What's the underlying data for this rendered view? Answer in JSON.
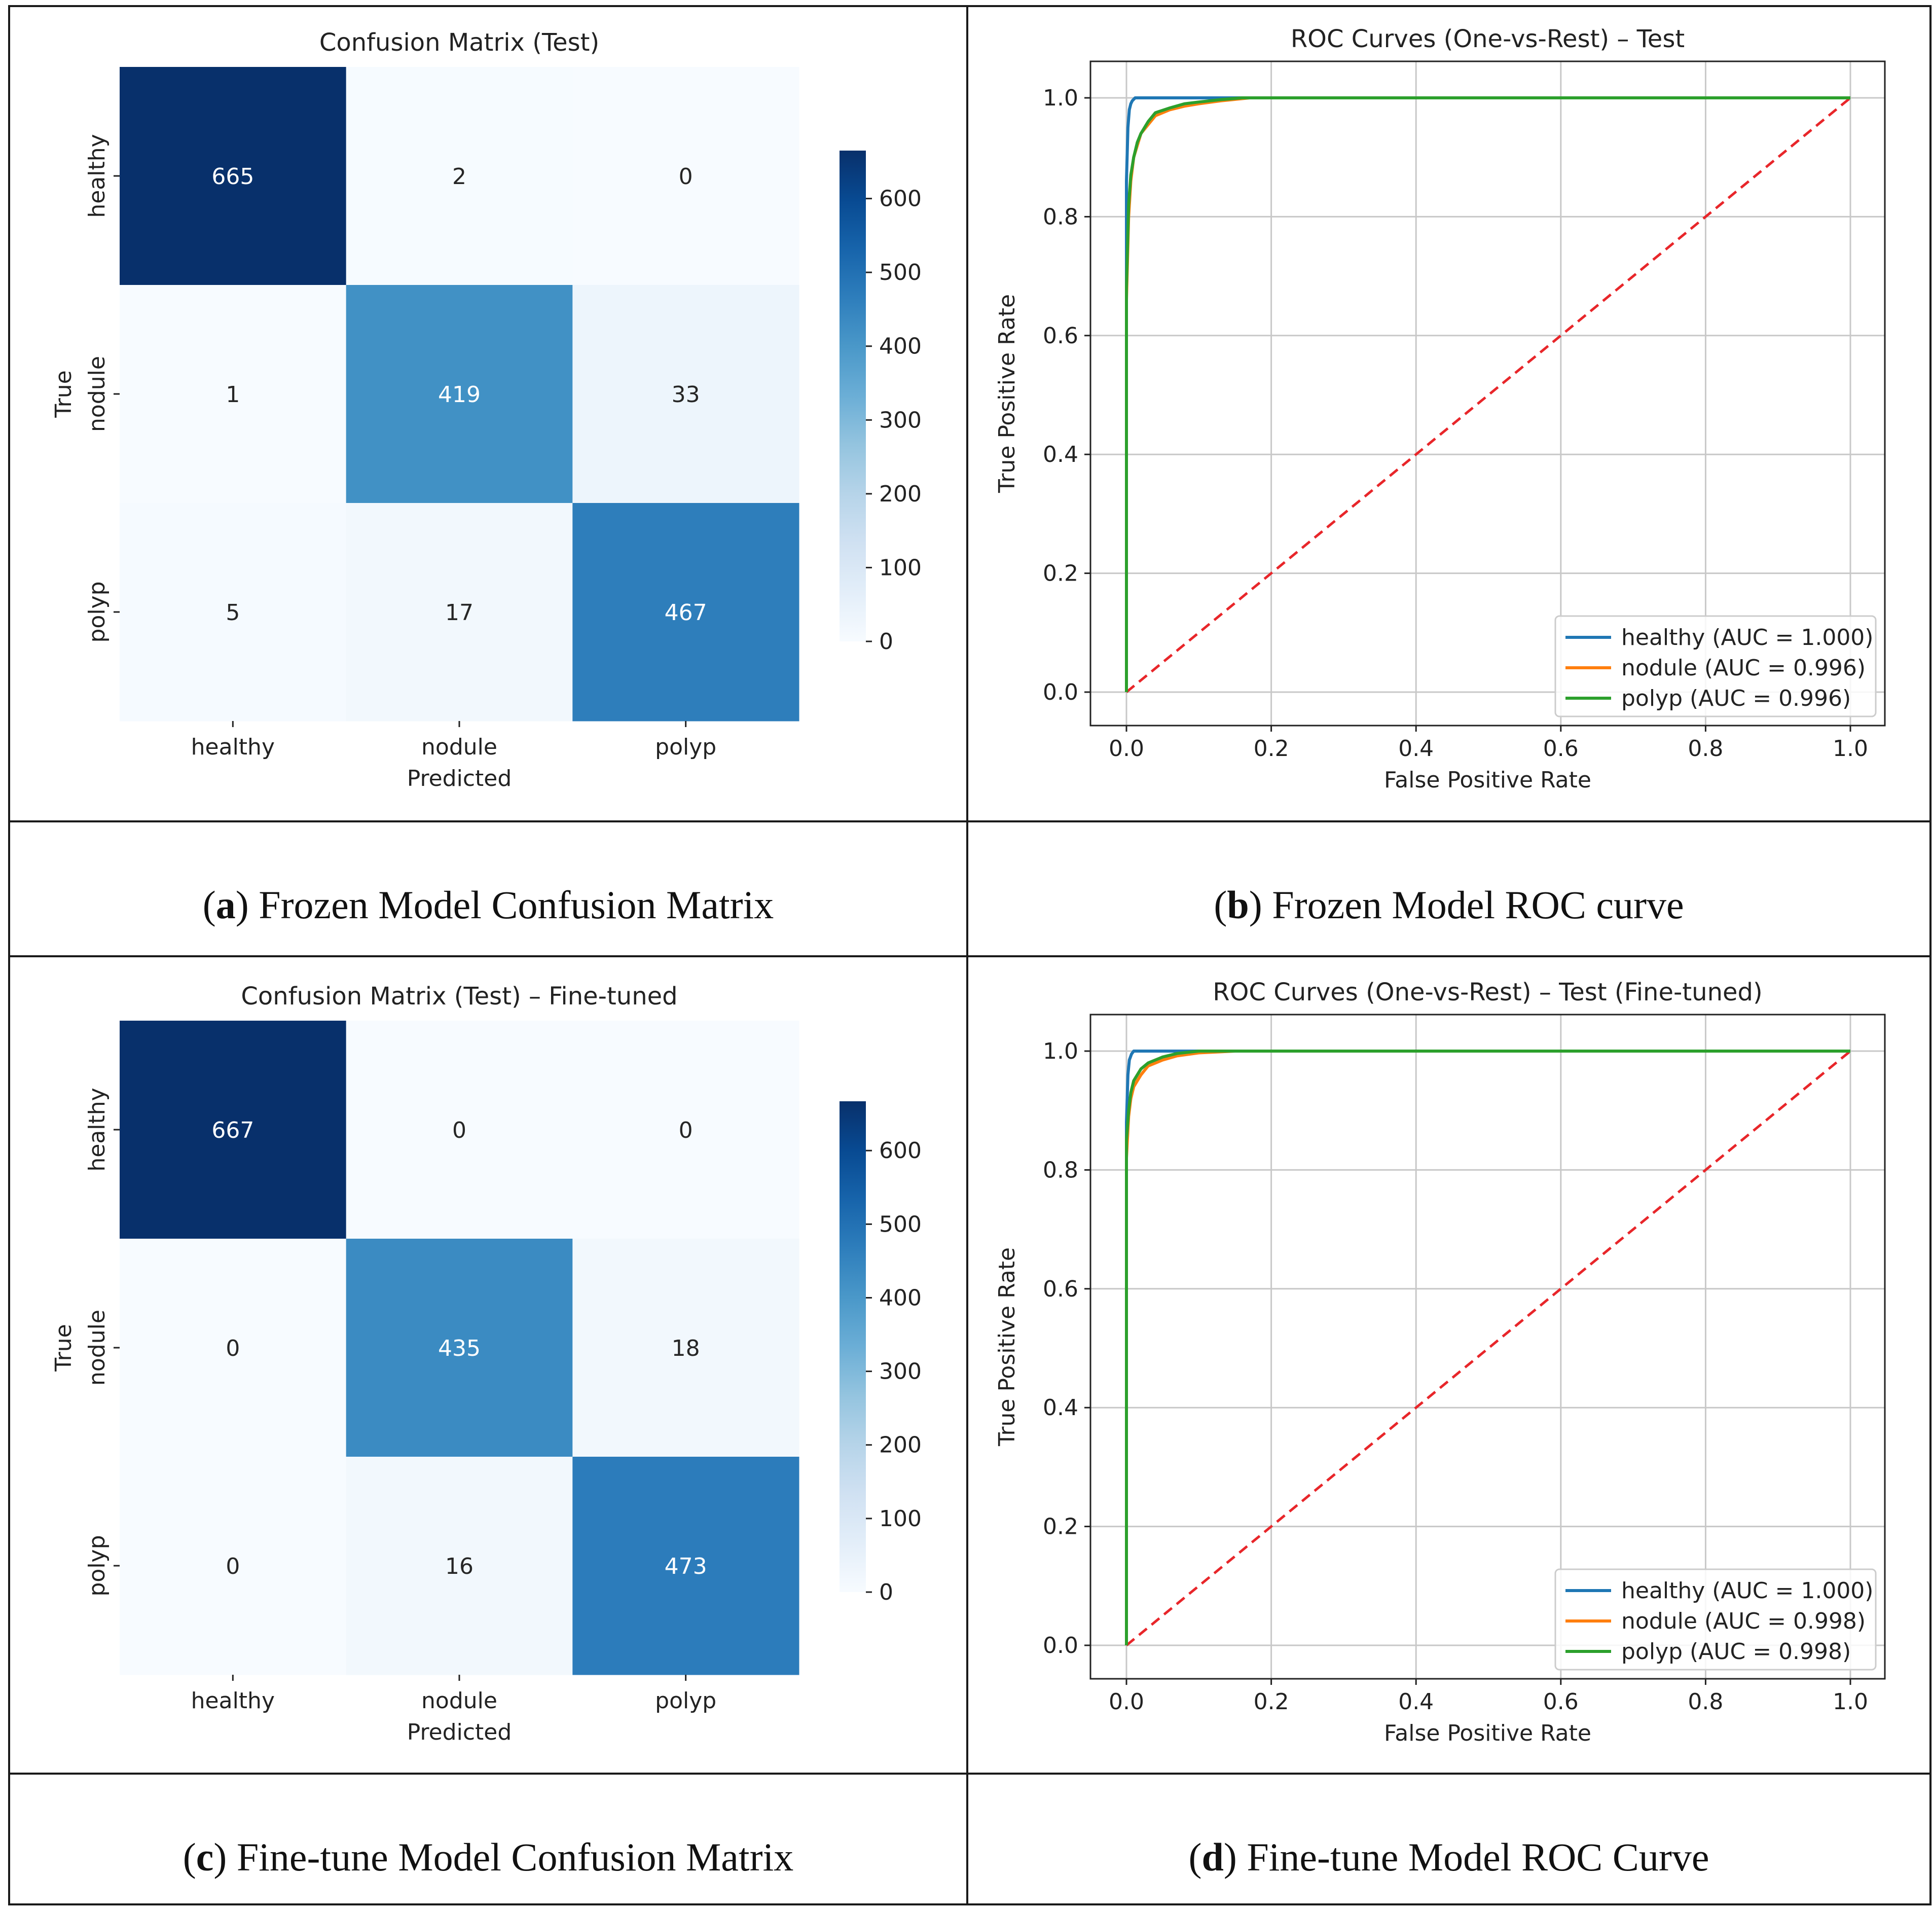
{
  "colors": {
    "frame": "#1a1a1a",
    "healthy": "#1f77b4",
    "nodule": "#ff7f0e",
    "polyp": "#2ca02c",
    "diagonal": "#e8262a",
    "gridline": "#c8c8c8"
  },
  "captions": {
    "a": {
      "letter": "a",
      "text": " Frozen Model Confusion Matrix"
    },
    "b": {
      "letter": "b",
      "text": " Frozen Model ROC curve"
    },
    "c": {
      "letter": "c",
      "text": " Fine-tune Model Confusion Matrix"
    },
    "d": {
      "letter": "d",
      "text": " Fine-tune Model ROC Curve"
    }
  },
  "chart_data": [
    {
      "id": "cm1",
      "type": "heatmap",
      "title": "Confusion Matrix (Test)",
      "xlabel": "Predicted",
      "ylabel": "True",
      "x_categories": [
        "healthy",
        "nodule",
        "polyp"
      ],
      "y_categories": [
        "healthy",
        "nodule",
        "polyp"
      ],
      "matrix": [
        [
          665,
          2,
          0
        ],
        [
          1,
          419,
          33
        ],
        [
          5,
          17,
          467
        ]
      ],
      "colorbar": {
        "min": 0,
        "max": 665,
        "ticks": [
          0,
          100,
          200,
          300,
          400,
          500,
          600
        ],
        "colormap": "Blues"
      }
    },
    {
      "id": "roc1",
      "type": "line",
      "title": "ROC Curves (One-vs-Rest) – Test",
      "xlabel": "False Positive Rate",
      "ylabel": "True Positive Rate",
      "xlim": [
        0,
        1
      ],
      "ylim": [
        0,
        1
      ],
      "xticks": [
        "0.0",
        "0.2",
        "0.4",
        "0.6",
        "0.8",
        "1.0"
      ],
      "yticks": [
        "0.0",
        "0.2",
        "0.4",
        "0.6",
        "0.8",
        "1.0"
      ],
      "grid": true,
      "legend": "bottom-right",
      "series": [
        {
          "name": "healthy (AUC = 1.000)",
          "color": "healthy",
          "x": [
            0,
            0,
            0.002,
            0.004,
            0.006,
            0.008,
            0.012,
            1.0
          ],
          "y": [
            0,
            0.86,
            0.95,
            0.98,
            0.99,
            0.995,
            1.0,
            1.0
          ]
        },
        {
          "name": "nodule (AUC = 0.996)",
          "color": "nodule",
          "x": [
            0,
            0,
            0.003,
            0.006,
            0.01,
            0.015,
            0.02,
            0.03,
            0.04,
            0.06,
            0.08,
            0.1,
            0.13,
            0.17,
            1.0
          ],
          "y": [
            0,
            0.66,
            0.8,
            0.86,
            0.9,
            0.92,
            0.94,
            0.955,
            0.97,
            0.98,
            0.986,
            0.99,
            0.995,
            1.0,
            1.0
          ]
        },
        {
          "name": "polyp (AUC = 0.996)",
          "color": "polyp",
          "x": [
            0,
            0,
            0.003,
            0.006,
            0.01,
            0.015,
            0.02,
            0.03,
            0.04,
            0.06,
            0.08,
            0.1,
            0.13,
            0.16,
            1.0
          ],
          "y": [
            0,
            0.68,
            0.82,
            0.87,
            0.9,
            0.925,
            0.94,
            0.96,
            0.975,
            0.983,
            0.99,
            0.993,
            0.997,
            1.0,
            1.0
          ]
        },
        {
          "name": "",
          "color": "diagonal",
          "dashed": true,
          "x": [
            0,
            1
          ],
          "y": [
            0,
            1
          ]
        }
      ]
    },
    {
      "id": "cm2",
      "type": "heatmap",
      "title": "Confusion Matrix (Test) – Fine-tuned",
      "xlabel": "Predicted",
      "ylabel": "True",
      "x_categories": [
        "healthy",
        "nodule",
        "polyp"
      ],
      "y_categories": [
        "healthy",
        "nodule",
        "polyp"
      ],
      "matrix": [
        [
          667,
          0,
          0
        ],
        [
          0,
          435,
          18
        ],
        [
          0,
          16,
          473
        ]
      ],
      "colorbar": {
        "min": 0,
        "max": 667,
        "ticks": [
          0,
          100,
          200,
          300,
          400,
          500,
          600
        ],
        "colormap": "Blues"
      }
    },
    {
      "id": "roc2",
      "type": "line",
      "title": "ROC Curves (One-vs-Rest) – Test (Fine-tuned)",
      "xlabel": "False Positive Rate",
      "ylabel": "True Positive Rate",
      "xlim": [
        0,
        1
      ],
      "ylim": [
        0,
        1
      ],
      "xticks": [
        "0.0",
        "0.2",
        "0.4",
        "0.6",
        "0.8",
        "1.0"
      ],
      "yticks": [
        "0.0",
        "0.2",
        "0.4",
        "0.6",
        "0.8",
        "1.0"
      ],
      "grid": true,
      "legend": "bottom-right",
      "series": [
        {
          "name": "healthy (AUC = 1.000)",
          "color": "healthy",
          "x": [
            0,
            0,
            0.002,
            0.004,
            0.007,
            0.01,
            1.0
          ],
          "y": [
            0,
            0.88,
            0.96,
            0.985,
            0.995,
            1.0,
            1.0
          ]
        },
        {
          "name": "nodule (AUC = 0.998)",
          "color": "nodule",
          "x": [
            0,
            0,
            0.003,
            0.006,
            0.01,
            0.015,
            0.02,
            0.03,
            0.05,
            0.07,
            0.1,
            0.15,
            1.0
          ],
          "y": [
            0,
            0.82,
            0.89,
            0.92,
            0.94,
            0.95,
            0.96,
            0.975,
            0.985,
            0.992,
            0.997,
            1.0,
            1.0
          ]
        },
        {
          "name": "polyp (AUC = 0.998)",
          "color": "polyp",
          "x": [
            0,
            0,
            0.003,
            0.006,
            0.01,
            0.015,
            0.02,
            0.03,
            0.05,
            0.07,
            0.1,
            1.0
          ],
          "y": [
            0,
            0.85,
            0.9,
            0.93,
            0.95,
            0.96,
            0.97,
            0.98,
            0.99,
            0.996,
            1.0,
            1.0
          ]
        },
        {
          "name": "",
          "color": "diagonal",
          "dashed": true,
          "x": [
            0,
            1
          ],
          "y": [
            0,
            1
          ]
        }
      ]
    }
  ]
}
